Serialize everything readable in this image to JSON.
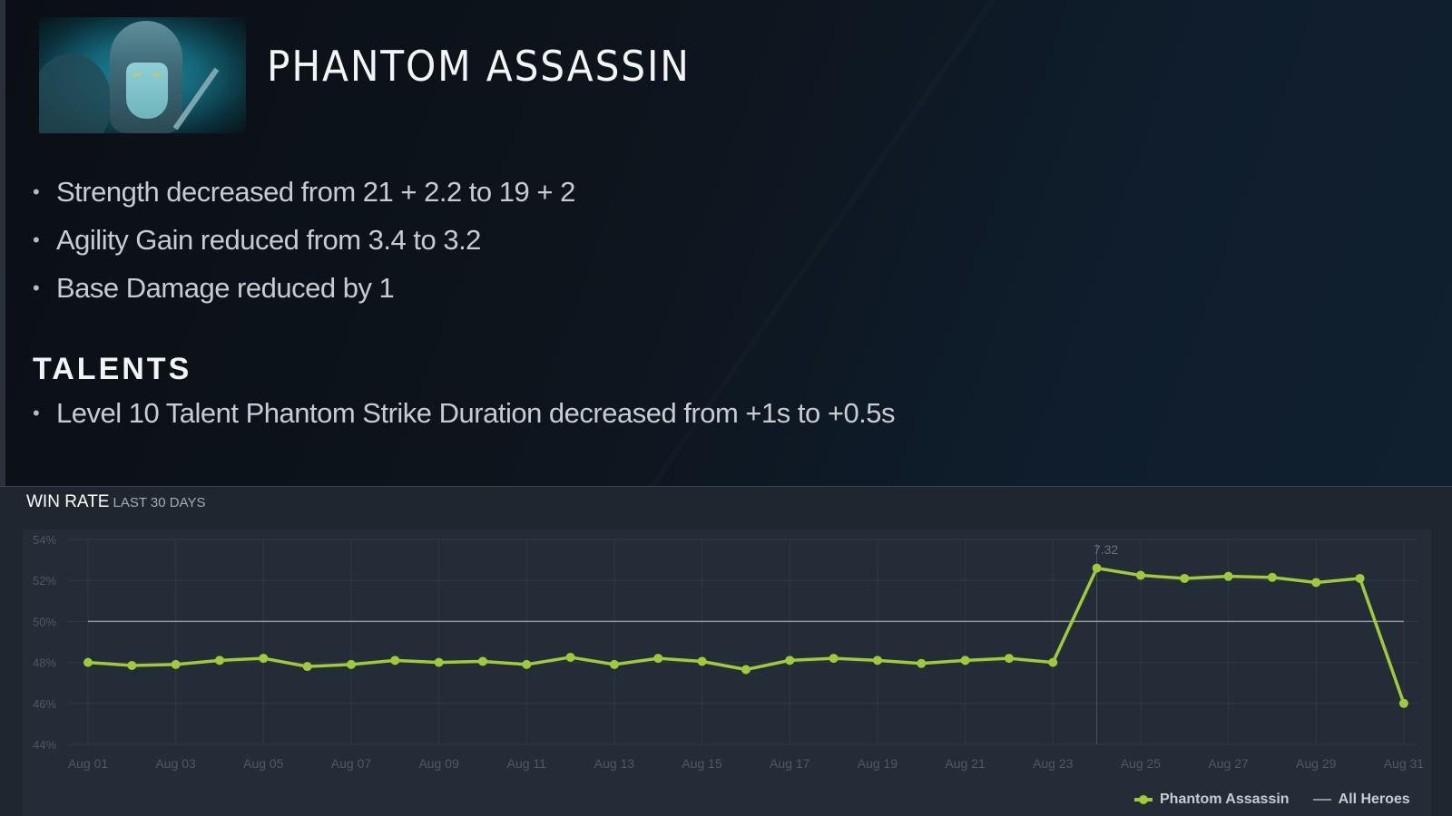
{
  "hero": {
    "name": "PHANTOM ASSASSIN",
    "portrait_icon": "hero-portrait-phantom-assassin"
  },
  "changes": [
    "Strength decreased from 21 + 2.2 to 19 + 2",
    "Agility Gain reduced from 3.4 to 3.2",
    "Base Damage reduced by 1"
  ],
  "talents": {
    "heading": "TALENTS",
    "items": [
      "Level 10 Talent Phantom Strike Duration decreased from +1s to +0.5s"
    ]
  },
  "winrate": {
    "title": "WIN RATE",
    "subtitle": "LAST 30 DAYS"
  },
  "colors": {
    "series_primary": "#9fca3a",
    "series_reference": "#8e959c",
    "panel_bg": "#242c37",
    "grid": "#2f3844",
    "axis_text": "#4f5864"
  },
  "chart_data": {
    "type": "line",
    "title": "WIN RATE LAST 30 DAYS",
    "xlabel": "",
    "ylabel": "",
    "ylim": [
      44,
      54
    ],
    "yticks": [
      "54%",
      "52%",
      "50%",
      "48%",
      "46%",
      "44%"
    ],
    "x": [
      "Aug 01",
      "Aug 02",
      "Aug 03",
      "Aug 04",
      "Aug 05",
      "Aug 06",
      "Aug 07",
      "Aug 08",
      "Aug 09",
      "Aug 10",
      "Aug 11",
      "Aug 12",
      "Aug 13",
      "Aug 14",
      "Aug 15",
      "Aug 16",
      "Aug 17",
      "Aug 18",
      "Aug 19",
      "Aug 20",
      "Aug 21",
      "Aug 22",
      "Aug 23",
      "Aug 24",
      "Aug 25",
      "Aug 26",
      "Aug 27",
      "Aug 28",
      "Aug 29",
      "Aug 30",
      "Aug 31"
    ],
    "xtick_labels": [
      "Aug 01",
      "Aug 03",
      "Aug 05",
      "Aug 07",
      "Aug 09",
      "Aug 11",
      "Aug 13",
      "Aug 15",
      "Aug 17",
      "Aug 19",
      "Aug 21",
      "Aug 23",
      "Aug 25",
      "Aug 27",
      "Aug 29",
      "Aug 31"
    ],
    "series": [
      {
        "name": "Phantom Assassin",
        "values": [
          48.0,
          47.85,
          47.9,
          48.1,
          48.2,
          47.8,
          47.9,
          48.1,
          48.0,
          48.05,
          47.9,
          48.25,
          47.9,
          48.2,
          48.05,
          47.65,
          48.1,
          48.2,
          48.1,
          47.95,
          48.1,
          48.2,
          48.0,
          52.6,
          52.25,
          52.1,
          52.2,
          52.15,
          51.9,
          52.1,
          46.0
        ]
      },
      {
        "name": "All Heroes",
        "values": [
          50,
          50,
          50,
          50,
          50,
          50,
          50,
          50,
          50,
          50,
          50,
          50,
          50,
          50,
          50,
          50,
          50,
          50,
          50,
          50,
          50,
          50,
          50,
          50,
          50,
          50,
          50,
          50,
          50,
          50,
          50
        ]
      }
    ],
    "annotations": [
      {
        "x": "Aug 24",
        "label": "7.32"
      }
    ],
    "grid": true,
    "legend_position": "bottom-right"
  }
}
